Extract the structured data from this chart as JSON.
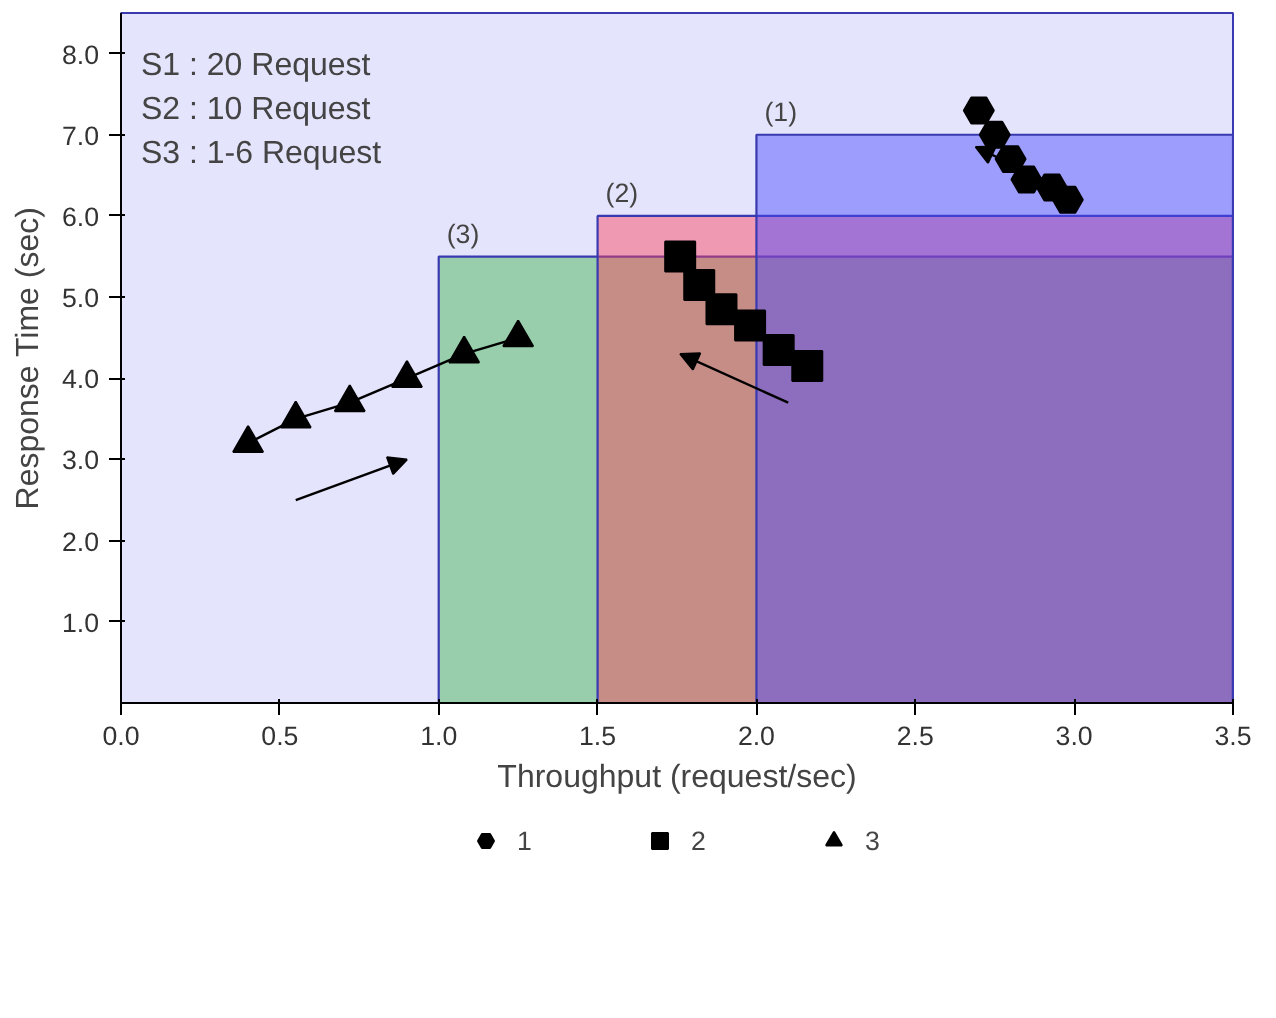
{
  "chart_data": {
    "type": "scatter",
    "xlabel": "Throughput (request/sec)",
    "ylabel": "Response Time (sec)",
    "xlim": [
      0,
      3.5
    ],
    "ylim": [
      0,
      8.5
    ],
    "xticks": [
      {
        "value": 0,
        "label": "0.0"
      },
      {
        "value": 0.5,
        "label": "0.5"
      },
      {
        "value": 1,
        "label": "1.0"
      },
      {
        "value": 1.5,
        "label": "1.5"
      },
      {
        "value": 2,
        "label": "2.0"
      },
      {
        "value": 2.5,
        "label": "2.5"
      },
      {
        "value": 3,
        "label": "3.0"
      },
      {
        "value": 3.5,
        "label": "3.5"
      }
    ],
    "yticks": [
      {
        "value": 1,
        "label": "1.0"
      },
      {
        "value": 2,
        "label": "2.0"
      },
      {
        "value": 3,
        "label": "3.0"
      },
      {
        "value": 4,
        "label": "4.0"
      },
      {
        "value": 5,
        "label": "5.0"
      },
      {
        "value": 6,
        "label": "6.0"
      },
      {
        "value": 7,
        "label": "7.0"
      },
      {
        "value": 8,
        "label": "8.0"
      }
    ],
    "grid": false,
    "legend": "bottom",
    "series": [
      {
        "type": "area",
        "color": "#3cb44b",
        "x": [
          1.0,
          3.5
        ],
        "values": [
          5.5,
          5.5
        ]
      },
      {
        "type": "area",
        "color": "#ff3f5a",
        "x": [
          1.5,
          3.5
        ],
        "values": [
          6.0,
          6.0
        ]
      },
      {
        "type": "area",
        "color": "#4646ff",
        "x": [
          2.0,
          3.5
        ],
        "values": [
          7.0,
          7.0
        ]
      },
      {
        "name": "1",
        "color": "#000000",
        "x": [
          2.7,
          2.75,
          2.8,
          2.85,
          2.93,
          2.98
        ],
        "values": [
          7.3,
          7.0,
          6.7,
          6.45,
          6.35,
          6.2
        ]
      },
      {
        "name": "2",
        "marker": "square",
        "color": "#000000",
        "x": [
          1.76,
          1.82,
          1.89,
          1.98,
          2.07,
          2.16
        ],
        "values": [
          5.5,
          5.15,
          4.85,
          4.65,
          4.35,
          4.15
        ]
      },
      {
        "type": "line",
        "name": "3",
        "marker": "triangle",
        "color": "#000000",
        "x": [
          0.4,
          0.55,
          0.72,
          0.9,
          1.08,
          1.25
        ],
        "values": [
          3.2,
          3.5,
          3.7,
          4.0,
          4.3,
          4.5
        ]
      }
    ],
    "annotations": [
      "S1 : 20 Request",
      "S2 : 10 Request",
      "S3 : 1-6 Request",
      {
        "text": "(1)",
        "x": 2.0,
        "y": 7.0
      },
      {
        "text": "(2)",
        "x": 1.5,
        "y": 6.0
      },
      {
        "text": "(3)",
        "x": 1.0,
        "y": 5.5
      }
    ]
  }
}
